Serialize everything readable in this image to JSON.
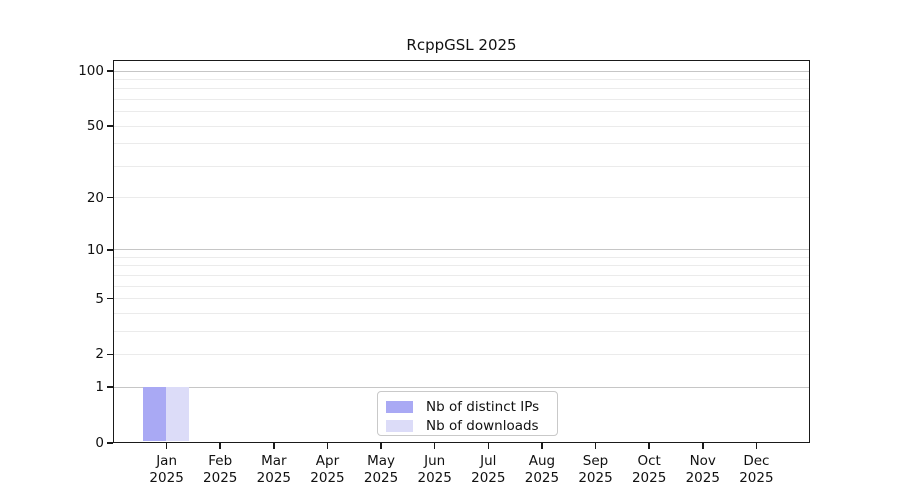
{
  "title": "RcppGSL 2025",
  "colors": {
    "distinct_ips": "#a9a9f4",
    "downloads": "#dcdcf8",
    "grid_major": "#c6c6c6",
    "grid_minor": "#ebebeb",
    "spine": "#1a1a1a",
    "text": "#111111",
    "legend_border": "#c9c9c9"
  },
  "legend": {
    "items": [
      {
        "label": "Nb of distinct IPs",
        "color": "#a9a9f4"
      },
      {
        "label": "Nb of downloads",
        "color": "#dcdcf8"
      }
    ]
  },
  "chart_data": {
    "type": "bar",
    "title": "RcppGSL 2025",
    "categories": [
      "Jan",
      "Feb",
      "Mar",
      "Apr",
      "May",
      "Jun",
      "Jul",
      "Aug",
      "Sep",
      "Oct",
      "Nov",
      "Dec"
    ],
    "category_year_label": "2025",
    "series": [
      {
        "name": "Nb of distinct IPs",
        "color": "#a9a9f4",
        "values": [
          1,
          0,
          0,
          0,
          0,
          0,
          0,
          0,
          0,
          0,
          0,
          0
        ]
      },
      {
        "name": "Nb of downloads",
        "color": "#dcdcf8",
        "values": [
          1,
          0,
          0,
          0,
          0,
          0,
          0,
          0,
          0,
          0,
          0,
          0
        ]
      }
    ],
    "xlabel": "",
    "ylabel": "",
    "yscale": "log1p",
    "ylim": [
      0,
      115
    ],
    "yticks": [
      0,
      1,
      2,
      5,
      10,
      20,
      50,
      100
    ],
    "grid": "horizontal",
    "grid_minor_values": [
      3,
      4,
      6,
      7,
      8,
      9,
      30,
      40,
      60,
      70,
      80,
      90
    ],
    "legend_position": "inside-bottom-center"
  }
}
